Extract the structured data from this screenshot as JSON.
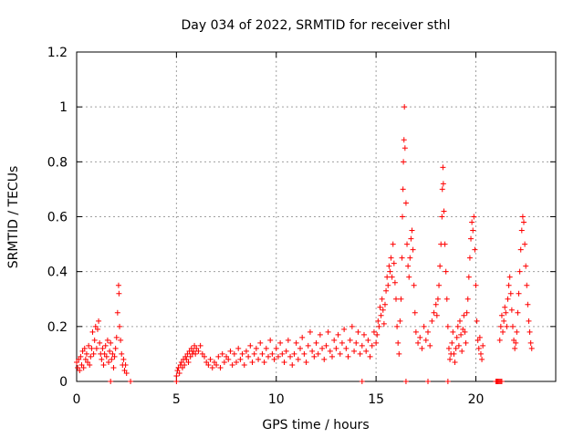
{
  "chart_data": {
    "type": "scatter",
    "title": "Day 034 of 2022, SRMTID for receiver sthl",
    "xlabel": "GPS time / hours",
    "ylabel": "SRMTID / TECUs",
    "xlim": [
      0,
      24
    ],
    "ylim": [
      0,
      1.2
    ],
    "xticks": [
      0,
      5,
      10,
      15,
      20
    ],
    "xtick_labels": [
      "0",
      "5",
      "10",
      "15",
      "20"
    ],
    "yticks": [
      0,
      0.2,
      0.4,
      0.6,
      0.8,
      1.0,
      1.2
    ],
    "ytick_labels": [
      "0",
      "0.2",
      "0.4",
      "0.6",
      "0.8",
      "1",
      "1.2"
    ],
    "grid": true,
    "marker": "+",
    "color": "#ff0000",
    "series": [
      {
        "name": "SRMTID",
        "points": [
          [
            0.0,
            0.07
          ],
          [
            0.05,
            0.05
          ],
          [
            0.1,
            0.08
          ],
          [
            0.15,
            0.04
          ],
          [
            0.2,
            0.09
          ],
          [
            0.25,
            0.06
          ],
          [
            0.3,
            0.11
          ],
          [
            0.35,
            0.05
          ],
          [
            0.4,
            0.12
          ],
          [
            0.45,
            0.08
          ],
          [
            0.5,
            0.1
          ],
          [
            0.55,
            0.07
          ],
          [
            0.6,
            0.13
          ],
          [
            0.65,
            0.06
          ],
          [
            0.7,
            0.09
          ],
          [
            0.75,
            0.12
          ],
          [
            0.8,
            0.18
          ],
          [
            0.85,
            0.1
          ],
          [
            0.9,
            0.15
          ],
          [
            0.95,
            0.2
          ],
          [
            1.0,
            0.12
          ],
          [
            1.05,
            0.19
          ],
          [
            1.1,
            0.22
          ],
          [
            1.15,
            0.14
          ],
          [
            1.2,
            0.1
          ],
          [
            1.25,
            0.08
          ],
          [
            1.3,
            0.12
          ],
          [
            1.35,
            0.06
          ],
          [
            1.4,
            0.1
          ],
          [
            1.45,
            0.13
          ],
          [
            1.5,
            0.09
          ],
          [
            1.55,
            0.15
          ],
          [
            1.6,
            0.07
          ],
          [
            1.65,
            0.11
          ],
          [
            1.7,
            0.14
          ],
          [
            1.75,
            0.08
          ],
          [
            1.8,
            0.1
          ],
          [
            1.85,
            0.05
          ],
          [
            1.9,
            0.09
          ],
          [
            1.95,
            0.12
          ],
          [
            2.0,
            0.16
          ],
          [
            2.05,
            0.25
          ],
          [
            2.1,
            0.35
          ],
          [
            2.12,
            0.32
          ],
          [
            2.15,
            0.2
          ],
          [
            2.2,
            0.15
          ],
          [
            2.25,
            0.1
          ],
          [
            2.3,
            0.06
          ],
          [
            2.35,
            0.08
          ],
          [
            2.4,
            0.04
          ],
          [
            2.45,
            0.06
          ],
          [
            2.5,
            0.03
          ],
          [
            1.7,
            0.0
          ],
          [
            2.7,
            0.0
          ],
          [
            5.0,
            0.02
          ],
          [
            5.05,
            0.04
          ],
          [
            5.1,
            0.05
          ],
          [
            5.15,
            0.03
          ],
          [
            5.2,
            0.06
          ],
          [
            5.25,
            0.07
          ],
          [
            5.3,
            0.05
          ],
          [
            5.35,
            0.08
          ],
          [
            5.4,
            0.06
          ],
          [
            5.45,
            0.09
          ],
          [
            5.5,
            0.08
          ],
          [
            5.55,
            0.1
          ],
          [
            5.6,
            0.07
          ],
          [
            5.65,
            0.11
          ],
          [
            5.7,
            0.09
          ],
          [
            5.75,
            0.12
          ],
          [
            5.8,
            0.1
          ],
          [
            5.85,
            0.11
          ],
          [
            5.9,
            0.13
          ],
          [
            5.95,
            0.1
          ],
          [
            6.0,
            0.12
          ],
          [
            6.1,
            0.11
          ],
          [
            6.2,
            0.13
          ],
          [
            6.3,
            0.1
          ],
          [
            6.4,
            0.09
          ],
          [
            6.5,
            0.07
          ],
          [
            6.6,
            0.06
          ],
          [
            6.7,
            0.08
          ],
          [
            6.8,
            0.05
          ],
          [
            6.9,
            0.07
          ],
          [
            7.0,
            0.06
          ],
          [
            7.1,
            0.09
          ],
          [
            7.2,
            0.05
          ],
          [
            7.3,
            0.1
          ],
          [
            7.4,
            0.07
          ],
          [
            7.5,
            0.09
          ],
          [
            7.6,
            0.08
          ],
          [
            7.7,
            0.11
          ],
          [
            7.8,
            0.06
          ],
          [
            7.9,
            0.1
          ],
          [
            8.0,
            0.07
          ],
          [
            8.1,
            0.12
          ],
          [
            8.2,
            0.08
          ],
          [
            8.3,
            0.1
          ],
          [
            8.4,
            0.06
          ],
          [
            8.5,
            0.11
          ],
          [
            8.6,
            0.09
          ],
          [
            8.7,
            0.13
          ],
          [
            8.8,
            0.07
          ],
          [
            8.9,
            0.1
          ],
          [
            9.0,
            0.12
          ],
          [
            9.1,
            0.08
          ],
          [
            9.2,
            0.14
          ],
          [
            9.3,
            0.1
          ],
          [
            9.4,
            0.07
          ],
          [
            9.5,
            0.12
          ],
          [
            9.6,
            0.09
          ],
          [
            9.7,
            0.15
          ],
          [
            9.8,
            0.1
          ],
          [
            9.9,
            0.08
          ],
          [
            10.0,
            0.12
          ],
          [
            10.1,
            0.09
          ],
          [
            10.2,
            0.14
          ],
          [
            10.3,
            0.1
          ],
          [
            10.4,
            0.07
          ],
          [
            10.5,
            0.11
          ],
          [
            10.6,
            0.15
          ],
          [
            10.7,
            0.09
          ],
          [
            10.8,
            0.06
          ],
          [
            10.9,
            0.1
          ],
          [
            11.0,
            0.14
          ],
          [
            11.1,
            0.08
          ],
          [
            11.2,
            0.12
          ],
          [
            11.3,
            0.16
          ],
          [
            11.4,
            0.1
          ],
          [
            11.5,
            0.07
          ],
          [
            11.6,
            0.13
          ],
          [
            11.7,
            0.18
          ],
          [
            11.8,
            0.11
          ],
          [
            11.9,
            0.09
          ],
          [
            12.0,
            0.14
          ],
          [
            12.1,
            0.1
          ],
          [
            12.2,
            0.17
          ],
          [
            12.3,
            0.12
          ],
          [
            12.4,
            0.08
          ],
          [
            12.5,
            0.13
          ],
          [
            12.6,
            0.18
          ],
          [
            12.7,
            0.11
          ],
          [
            12.8,
            0.09
          ],
          [
            12.9,
            0.15
          ],
          [
            13.0,
            0.12
          ],
          [
            13.1,
            0.17
          ],
          [
            13.2,
            0.1
          ],
          [
            13.3,
            0.14
          ],
          [
            13.4,
            0.19
          ],
          [
            13.5,
            0.12
          ],
          [
            13.6,
            0.09
          ],
          [
            13.7,
            0.15
          ],
          [
            13.8,
            0.2
          ],
          [
            13.9,
            0.11
          ],
          [
            14.0,
            0.14
          ],
          [
            14.1,
            0.18
          ],
          [
            14.2,
            0.1
          ],
          [
            14.3,
            0.13
          ],
          [
            14.4,
            0.17
          ],
          [
            14.5,
            0.11
          ],
          [
            14.6,
            0.15
          ],
          [
            14.7,
            0.09
          ],
          [
            14.8,
            0.13
          ],
          [
            14.9,
            0.18
          ],
          [
            15.0,
            0.14
          ],
          [
            5.0,
            0.0
          ],
          [
            14.3,
            0.0
          ],
          [
            15.05,
            0.17
          ],
          [
            15.1,
            0.22
          ],
          [
            15.15,
            0.2
          ],
          [
            15.2,
            0.27
          ],
          [
            15.25,
            0.24
          ],
          [
            15.3,
            0.3
          ],
          [
            15.35,
            0.26
          ],
          [
            15.4,
            0.21
          ],
          [
            15.45,
            0.28
          ],
          [
            15.5,
            0.33
          ],
          [
            15.55,
            0.38
          ],
          [
            15.6,
            0.35
          ],
          [
            15.65,
            0.42
          ],
          [
            15.7,
            0.4
          ],
          [
            15.75,
            0.45
          ],
          [
            15.8,
            0.38
          ],
          [
            15.85,
            0.5
          ],
          [
            15.9,
            0.43
          ],
          [
            15.95,
            0.36
          ],
          [
            16.0,
            0.3
          ],
          [
            16.05,
            0.2
          ],
          [
            16.1,
            0.14
          ],
          [
            16.15,
            0.1
          ],
          [
            16.2,
            0.22
          ],
          [
            16.25,
            0.3
          ],
          [
            16.3,
            0.45
          ],
          [
            16.32,
            0.6
          ],
          [
            16.35,
            0.7
          ],
          [
            16.37,
            0.8
          ],
          [
            16.4,
            0.88
          ],
          [
            16.42,
            1.0
          ],
          [
            16.45,
            0.85
          ],
          [
            16.5,
            0.65
          ],
          [
            16.55,
            0.5
          ],
          [
            16.6,
            0.42
          ],
          [
            16.65,
            0.38
          ],
          [
            16.7,
            0.45
          ],
          [
            16.75,
            0.52
          ],
          [
            16.8,
            0.55
          ],
          [
            16.85,
            0.48
          ],
          [
            16.9,
            0.35
          ],
          [
            16.95,
            0.25
          ],
          [
            17.0,
            0.18
          ],
          [
            17.1,
            0.14
          ],
          [
            17.2,
            0.16
          ],
          [
            17.3,
            0.12
          ],
          [
            17.4,
            0.2
          ],
          [
            17.5,
            0.15
          ],
          [
            17.6,
            0.18
          ],
          [
            17.7,
            0.13
          ],
          [
            17.8,
            0.22
          ],
          [
            17.9,
            0.25
          ],
          [
            18.0,
            0.28
          ],
          [
            18.05,
            0.24
          ],
          [
            18.1,
            0.3
          ],
          [
            18.15,
            0.35
          ],
          [
            18.2,
            0.42
          ],
          [
            18.25,
            0.5
          ],
          [
            18.3,
            0.6
          ],
          [
            18.32,
            0.7
          ],
          [
            18.35,
            0.78
          ],
          [
            18.37,
            0.72
          ],
          [
            18.4,
            0.62
          ],
          [
            18.45,
            0.5
          ],
          [
            18.5,
            0.4
          ],
          [
            18.55,
            0.3
          ],
          [
            18.6,
            0.2
          ],
          [
            18.65,
            0.12
          ],
          [
            18.7,
            0.08
          ],
          [
            18.75,
            0.1
          ],
          [
            18.8,
            0.14
          ],
          [
            18.85,
            0.18
          ],
          [
            18.9,
            0.1
          ],
          [
            18.95,
            0.07
          ],
          [
            19.0,
            0.12
          ],
          [
            19.05,
            0.16
          ],
          [
            19.1,
            0.2
          ],
          [
            19.15,
            0.13
          ],
          [
            19.2,
            0.22
          ],
          [
            19.25,
            0.17
          ],
          [
            19.3,
            0.11
          ],
          [
            19.35,
            0.19
          ],
          [
            19.4,
            0.24
          ],
          [
            19.45,
            0.18
          ],
          [
            19.5,
            0.14
          ],
          [
            19.55,
            0.25
          ],
          [
            19.6,
            0.3
          ],
          [
            19.65,
            0.38
          ],
          [
            19.7,
            0.45
          ],
          [
            19.75,
            0.52
          ],
          [
            19.8,
            0.58
          ],
          [
            19.85,
            0.55
          ],
          [
            19.9,
            0.6
          ],
          [
            19.95,
            0.48
          ],
          [
            20.0,
            0.35
          ],
          [
            20.05,
            0.22
          ],
          [
            20.1,
            0.15
          ],
          [
            20.15,
            0.12
          ],
          [
            20.2,
            0.16
          ],
          [
            20.25,
            0.1
          ],
          [
            20.3,
            0.08
          ],
          [
            20.35,
            0.13
          ],
          [
            16.5,
            0.0
          ],
          [
            17.6,
            0.0
          ],
          [
            18.6,
            0.0
          ],
          [
            21.0,
            0.0
          ],
          [
            21.05,
            0.0
          ],
          [
            21.1,
            0.0
          ],
          [
            21.15,
            0.0
          ],
          [
            21.2,
            0.0
          ],
          [
            21.25,
            0.0
          ],
          [
            21.3,
            0.0
          ],
          [
            21.2,
            0.15
          ],
          [
            21.25,
            0.2
          ],
          [
            21.3,
            0.24
          ],
          [
            21.35,
            0.18
          ],
          [
            21.4,
            0.22
          ],
          [
            21.45,
            0.27
          ],
          [
            21.5,
            0.25
          ],
          [
            21.55,
            0.2
          ],
          [
            21.6,
            0.3
          ],
          [
            21.65,
            0.35
          ],
          [
            21.7,
            0.38
          ],
          [
            21.75,
            0.32
          ],
          [
            21.8,
            0.26
          ],
          [
            21.85,
            0.2
          ],
          [
            21.9,
            0.15
          ],
          [
            21.95,
            0.12
          ],
          [
            22.0,
            0.14
          ],
          [
            22.05,
            0.18
          ],
          [
            22.1,
            0.25
          ],
          [
            22.15,
            0.32
          ],
          [
            22.2,
            0.4
          ],
          [
            22.25,
            0.48
          ],
          [
            22.3,
            0.55
          ],
          [
            22.35,
            0.6
          ],
          [
            22.4,
            0.58
          ],
          [
            22.45,
            0.5
          ],
          [
            22.5,
            0.42
          ],
          [
            22.55,
            0.35
          ],
          [
            22.6,
            0.28
          ],
          [
            22.65,
            0.22
          ],
          [
            22.7,
            0.18
          ],
          [
            22.75,
            0.14
          ],
          [
            22.8,
            0.12
          ]
        ]
      }
    ]
  }
}
